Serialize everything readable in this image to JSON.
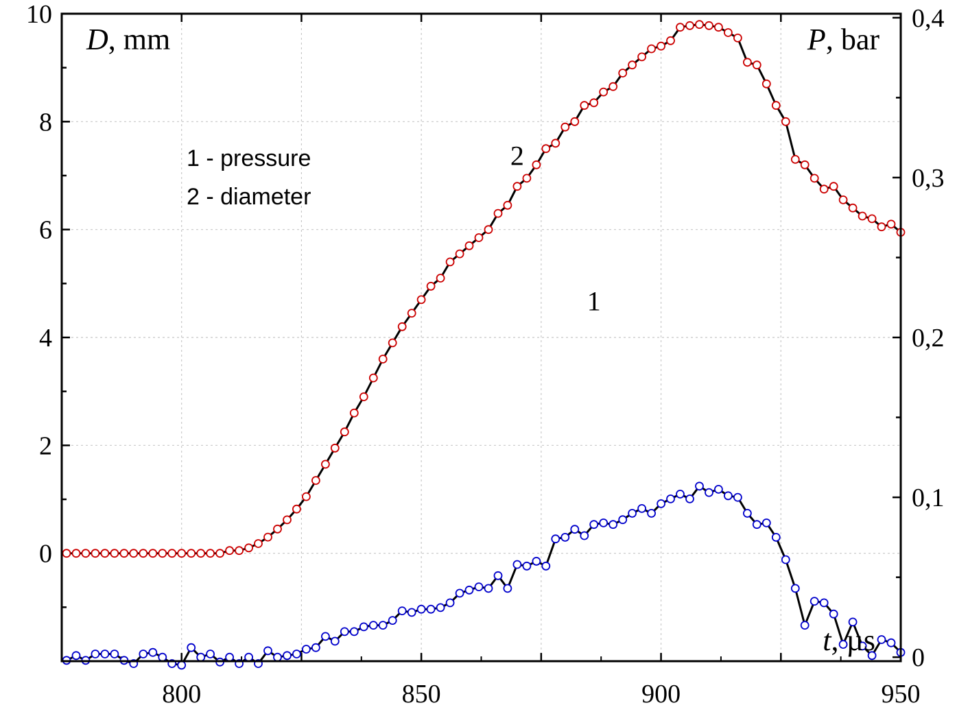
{
  "chart_data": {
    "type": "line",
    "title": "",
    "xlabel": {
      "var": "t",
      "unit": ", µs"
    },
    "ylabel_left": {
      "var": "D",
      "unit": ", mm"
    },
    "ylabel_right": {
      "var": "P",
      "unit": ", bar"
    },
    "xlim": [
      775,
      950
    ],
    "ylim_left": [
      -2,
      10
    ],
    "ylim_right": [
      -0.0025,
      0.4025
    ],
    "x_ticks": [
      800,
      850,
      900,
      950
    ],
    "x_tick_labels": [
      "800",
      "850",
      "900",
      "950"
    ],
    "y_left_ticks": [
      0,
      2,
      4,
      6,
      8,
      10
    ],
    "y_left_tick_labels": [
      "0",
      "2",
      "4",
      "6",
      "8",
      "10"
    ],
    "y_right_ticks": [
      0,
      0.1,
      0.2,
      0.3,
      0.4
    ],
    "y_right_tick_labels": [
      "0",
      "0,1",
      "0,2",
      "0,3",
      "0,4"
    ],
    "grid": true,
    "legend": [
      "1 - pressure",
      "2 - diameter"
    ],
    "curve_labels": [
      {
        "text": "1",
        "x": 886,
        "y": 4.5
      },
      {
        "text": "2",
        "x": 870,
        "y": 7.2
      }
    ],
    "series": [
      {
        "name": "pressure",
        "id": 1,
        "axis": "right",
        "marker_color": "#0000cc",
        "x": [
          776,
          778,
          780,
          782,
          784,
          786,
          788,
          790,
          792,
          794,
          796,
          798,
          800,
          802,
          804,
          806,
          808,
          810,
          812,
          814,
          816,
          818,
          820,
          822,
          824,
          826,
          828,
          830,
          832,
          834,
          836,
          838,
          840,
          842,
          844,
          846,
          848,
          850,
          852,
          854,
          856,
          858,
          860,
          862,
          864,
          866,
          868,
          870,
          872,
          874,
          876,
          878,
          880,
          882,
          884,
          886,
          888,
          890,
          892,
          894,
          896,
          898,
          900,
          902,
          904,
          906,
          908,
          910,
          912,
          914,
          916,
          918,
          920,
          922,
          924,
          926,
          928,
          930,
          932,
          934,
          936,
          938,
          940,
          942,
          944,
          946,
          948,
          950
        ],
        "y": [
          -0.002,
          0.001,
          -0.002,
          0.002,
          0.002,
          0.002,
          -0.002,
          -0.004,
          0.002,
          0.003,
          0,
          -0.004,
          -0.005,
          0.006,
          0,
          0.002,
          -0.003,
          0,
          -0.004,
          0,
          -0.004,
          0.004,
          0,
          0.001,
          0.002,
          0.005,
          0.006,
          0.013,
          0.01,
          0.016,
          0.016,
          0.019,
          0.02,
          0.02,
          0.023,
          0.029,
          0.028,
          0.03,
          0.03,
          0.031,
          0.034,
          0.04,
          0.042,
          0.044,
          0.043,
          0.051,
          0.043,
          0.058,
          0.057,
          0.06,
          0.057,
          0.074,
          0.075,
          0.08,
          0.076,
          0.083,
          0.084,
          0.083,
          0.086,
          0.09,
          0.093,
          0.09,
          0.096,
          0.099,
          0.102,
          0.099,
          0.107,
          0.103,
          0.105,
          0.101,
          0.1,
          0.09,
          0.083,
          0.084,
          0.075,
          0.061,
          0.043,
          0.02,
          0.035,
          0.034,
          0.027,
          0.008,
          0.022,
          0.007,
          0.001,
          0.011,
          0.009,
          0.003
        ]
      },
      {
        "name": "diameter",
        "id": 2,
        "axis": "left",
        "marker_color": "#cc0000",
        "x": [
          776,
          778,
          780,
          782,
          784,
          786,
          788,
          790,
          792,
          794,
          796,
          798,
          800,
          802,
          804,
          806,
          808,
          810,
          812,
          814,
          816,
          818,
          820,
          822,
          824,
          826,
          828,
          830,
          832,
          834,
          836,
          838,
          840,
          842,
          844,
          846,
          848,
          850,
          852,
          854,
          856,
          858,
          860,
          862,
          864,
          866,
          868,
          870,
          872,
          874,
          876,
          878,
          880,
          882,
          884,
          886,
          888,
          890,
          892,
          894,
          896,
          898,
          900,
          902,
          904,
          906,
          908,
          910,
          912,
          914,
          916,
          918,
          920,
          922,
          924,
          926,
          928,
          930,
          932,
          934,
          936,
          938,
          940,
          942,
          944,
          946,
          948,
          950
        ],
        "y": [
          0,
          0,
          0,
          0,
          0,
          0,
          0,
          0,
          0,
          0,
          0,
          0,
          0,
          0,
          0,
          0,
          0,
          0.05,
          0.05,
          0.1,
          0.18,
          0.3,
          0.45,
          0.62,
          0.82,
          1.05,
          1.35,
          1.65,
          1.95,
          2.25,
          2.6,
          2.9,
          3.25,
          3.6,
          3.9,
          4.2,
          4.45,
          4.7,
          4.95,
          5.1,
          5.4,
          5.55,
          5.7,
          5.85,
          6,
          6.3,
          6.45,
          6.8,
          6.95,
          7.2,
          7.5,
          7.6,
          7.9,
          8,
          8.3,
          8.35,
          8.55,
          8.65,
          8.9,
          9.05,
          9.2,
          9.35,
          9.4,
          9.5,
          9.75,
          9.78,
          9.8,
          9.78,
          9.75,
          9.65,
          9.55,
          9.1,
          9.05,
          8.7,
          8.3,
          8,
          7.3,
          7.2,
          6.95,
          6.75,
          6.8,
          6.55,
          6.4,
          6.25,
          6.2,
          6.05,
          6.1,
          5.95
        ]
      }
    ]
  }
}
